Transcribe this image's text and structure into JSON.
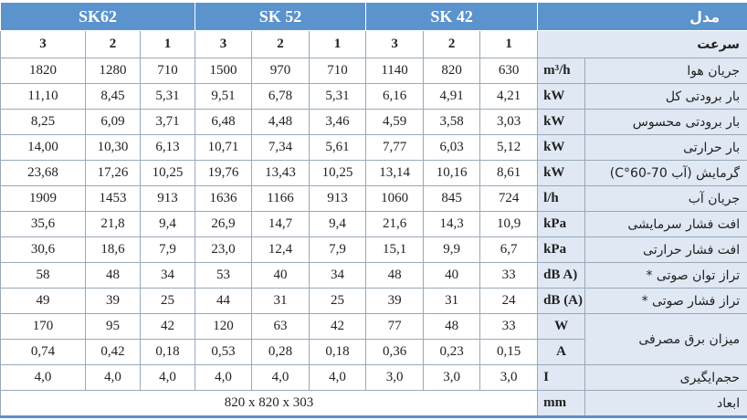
{
  "header": {
    "model_label": "مدل",
    "models": [
      "SK62",
      "SK 52",
      "SK 42"
    ]
  },
  "speed": {
    "label": "سرعت",
    "values": [
      "3",
      "2",
      "1",
      "3",
      "2",
      "1",
      "3",
      "2",
      "1"
    ]
  },
  "rows": [
    {
      "label": "جریان هوا",
      "unit": "m³/h",
      "values": [
        "1820",
        "1280",
        "710",
        "1500",
        "970",
        "710",
        "1140",
        "820",
        "630"
      ]
    },
    {
      "label": "بار برودتی کل",
      "unit": "kW",
      "values": [
        "11,10",
        "8,45",
        "5,31",
        "9,51",
        "6,78",
        "5,31",
        "6,16",
        "4,91",
        "4,21"
      ]
    },
    {
      "label": "بار برودتی محسوس",
      "unit": "kW",
      "values": [
        "8,25",
        "6,09",
        "3,71",
        "6,48",
        "4,48",
        "3,46",
        "4,59",
        "3,58",
        "3,03"
      ]
    },
    {
      "label": "بار حرارتی",
      "unit": "kW",
      "values": [
        "14,00",
        "10,30",
        "6,13",
        "10,71",
        "7,34",
        "5,61",
        "7,77",
        "6,03",
        "5,12"
      ]
    },
    {
      "label": "گرمایش (آب 70-60°C)",
      "unit": "kW",
      "values": [
        "23,68",
        "17,26",
        "10,25",
        "19,76",
        "13,43",
        "10,25",
        "13,14",
        "10,16",
        "8,61"
      ]
    },
    {
      "label": "جریان آب",
      "unit": "l/h",
      "values": [
        "1909",
        "1453",
        "913",
        "1636",
        "1166",
        "913",
        "1060",
        "845",
        "724"
      ]
    },
    {
      "label": "افت فشار سرمایشی",
      "unit": "kPa",
      "values": [
        "35,6",
        "21,8",
        "9,4",
        "26,9",
        "14,7",
        "9,4",
        "21,6",
        "14,3",
        "10,9"
      ]
    },
    {
      "label": "افت فشار حرارتی",
      "unit": "kPa",
      "values": [
        "30,6",
        "18,6",
        "7,9",
        "23,0",
        "12,4",
        "7,9",
        "15,1",
        "9,9",
        "6,7"
      ]
    },
    {
      "label": "تراز توان صوتی *",
      "unit": "dB A)",
      "values": [
        "58",
        "48",
        "34",
        "53",
        "40",
        "34",
        "48",
        "40",
        "33"
      ]
    },
    {
      "label": "تراز فشار صوتی *",
      "unit": "dB (A)",
      "values": [
        "49",
        "39",
        "25",
        "44",
        "31",
        "25",
        "39",
        "31",
        "24"
      ]
    }
  ],
  "power": {
    "label": "میزان برق مصرفی",
    "units": [
      "W",
      "A"
    ],
    "rows": [
      [
        "170",
        "95",
        "42",
        "120",
        "63",
        "42",
        "77",
        "48",
        "33"
      ],
      [
        "0,74",
        "0,42",
        "0,18",
        "0,53",
        "0,28",
        "0,18",
        "0,36",
        "0,23",
        "0,15"
      ]
    ]
  },
  "current": {
    "label": "حجم‌ایگیری",
    "unit": "I",
    "values": [
      "4,0",
      "4,0",
      "4,0",
      "4,0",
      "4,0",
      "4,0",
      "3,0",
      "3,0",
      "3,0"
    ]
  },
  "dimensions": {
    "label": "ابعاد",
    "unit": "mm",
    "value": "820 x 820 x 303"
  }
}
